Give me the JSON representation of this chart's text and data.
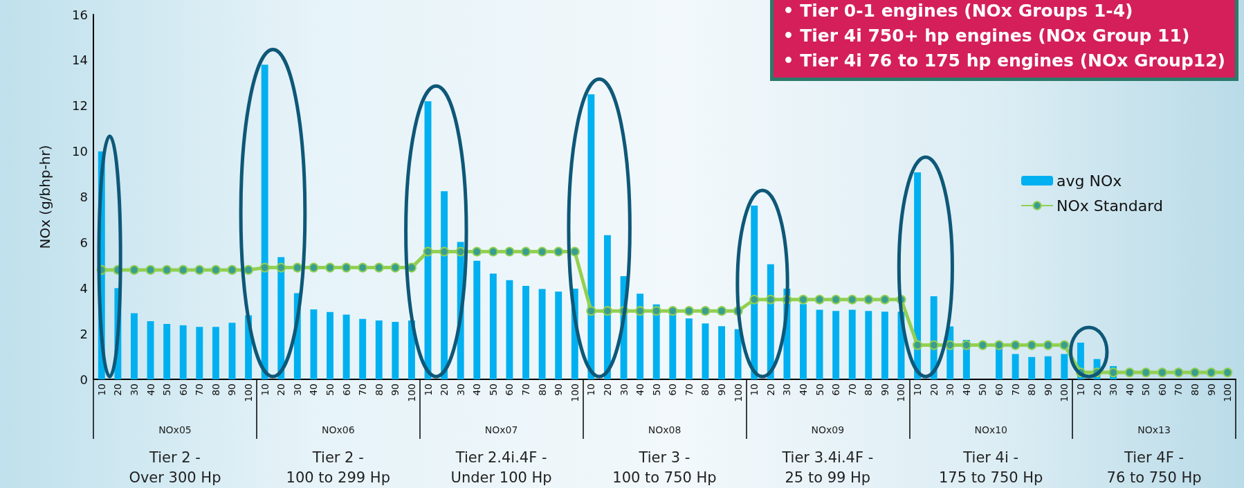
{
  "chart_data": {
    "type": "bar",
    "ylabel": "NOx (g/bhp-hr)",
    "categories": [
      "10",
      "20",
      "30",
      "40",
      "50",
      "60",
      "70",
      "80",
      "90",
      "100",
      "10",
      "20",
      "30",
      "40",
      "50",
      "60",
      "70",
      "80",
      "90",
      "100",
      "10",
      "20",
      "30",
      "40",
      "50",
      "60",
      "70",
      "80",
      "90",
      "100",
      "10",
      "20",
      "30",
      "40",
      "50",
      "60",
      "70",
      "80",
      "90",
      "100",
      "10",
      "20",
      "30",
      "40",
      "50",
      "60",
      "70",
      "80",
      "90",
      "100",
      "10",
      "20",
      "30",
      "40",
      "50",
      "60",
      "70",
      "80",
      "90",
      "100",
      "10",
      "20",
      "30",
      "40",
      "50",
      "60",
      "70",
      "80",
      "90",
      "100"
    ],
    "series": [
      {
        "name": "avg NOx",
        "color": "#00b0f0",
        "values": [
          10.0,
          4.0,
          2.9,
          2.55,
          2.43,
          2.37,
          2.3,
          2.3,
          2.48,
          2.81,
          13.8,
          5.36,
          3.78,
          3.07,
          2.95,
          2.84,
          2.65,
          2.58,
          2.52,
          2.58,
          12.2,
          8.25,
          6.03,
          5.2,
          4.64,
          4.35,
          4.1,
          3.96,
          3.85,
          3.98,
          12.5,
          6.32,
          4.52,
          3.76,
          3.29,
          2.95,
          2.67,
          2.45,
          2.33,
          2.2,
          7.62,
          5.05,
          3.98,
          3.3,
          3.05,
          3.0,
          3.05,
          3.0,
          2.97,
          2.97,
          9.08,
          3.64,
          2.32,
          1.73,
          null,
          1.45,
          1.11,
          0.98,
          1.01,
          1.11,
          1.61,
          0.89,
          0.58,
          null,
          null,
          null,
          null,
          null,
          null,
          null
        ]
      },
      {
        "name": "NOx Standard",
        "type": "line",
        "color": "#92d050",
        "values": [
          4.8,
          4.8,
          4.8,
          4.8,
          4.8,
          4.8,
          4.8,
          4.8,
          4.8,
          4.8,
          4.9,
          4.9,
          4.9,
          4.9,
          4.9,
          4.9,
          4.9,
          4.9,
          4.9,
          4.9,
          5.6,
          5.6,
          5.6,
          5.6,
          5.6,
          5.6,
          5.6,
          5.6,
          5.6,
          5.6,
          3.0,
          3.0,
          3.0,
          3.0,
          3.0,
          3.0,
          3.0,
          3.0,
          3.0,
          3.0,
          3.5,
          3.5,
          3.5,
          3.5,
          3.5,
          3.5,
          3.5,
          3.5,
          3.5,
          3.5,
          1.5,
          1.5,
          1.5,
          1.5,
          1.5,
          1.5,
          1.5,
          1.5,
          1.5,
          1.5,
          0.3,
          0.3,
          0.3,
          0.3,
          0.3,
          0.3,
          0.3,
          0.3,
          0.3,
          0.3
        ]
      }
    ],
    "ylim": [
      0,
      16
    ],
    "yticks": [
      0,
      2,
      4,
      6,
      8,
      10,
      12,
      14,
      16
    ],
    "marker": "circle",
    "legend": "right",
    "annotations": [
      "• Tier 0-1 engines (NOx Groups 1-4)",
      "• Tier 4i 750+ hp engines (NOx Group 11)",
      "• Tier 4i 76 to 175 hp engines (NOx Group12)",
      "NOx05",
      "NOx06",
      "NOx07",
      "NOx08",
      "NOx09",
      "NOx10",
      "NOx13",
      "Tier 2 -\nOver 300 Hp",
      "Tier 2 -\n100 to 299 Hp",
      "Tier 2.4i.4F -\nUnder 100 Hp",
      "Tier 3 -\n100 to 750 Hp",
      "Tier 3.4i.4F -\n25 to 99 Hp",
      "Tier 4i -\n175 to 750 Hp",
      "Tier 4F -\n76 to 750 Hp"
    ]
  }
}
